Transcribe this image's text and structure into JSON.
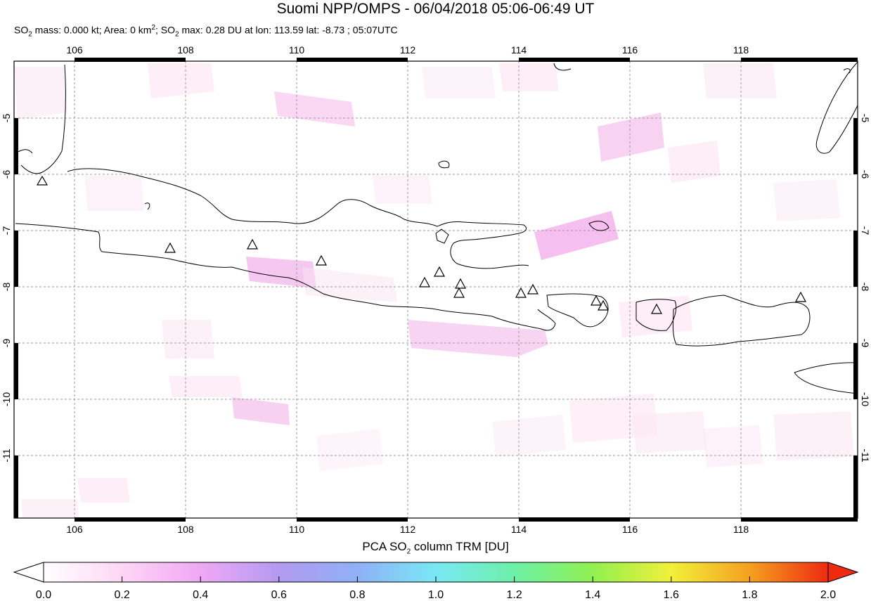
{
  "title": "Suomi NPP/OMPS - 06/04/2018 05:06-06:49 UT",
  "subtitle": {
    "p1": "SO",
    "p1sub": "2",
    "p2": " mass: 0.000 kt; Area: 0 km",
    "p2sup": "2",
    "p3": "; SO",
    "p3sub": "2",
    "p4": " max: 0.28 DU at lon: 113.59 lat: -8.73 ; 05:07UTC"
  },
  "map": {
    "lon_ticks": [
      "106",
      "108",
      "110",
      "112",
      "114",
      "116",
      "118"
    ],
    "lat_ticks": [
      "-5",
      "-6",
      "-7",
      "-8",
      "-9",
      "-10",
      "-11"
    ],
    "volcano_icon": "triangle-outline-icon"
  },
  "colorbar": {
    "title_a": "PCA SO",
    "title_sub": "2",
    "title_b": " column TRM [DU]",
    "ticks": [
      "0.0",
      "0.2",
      "0.4",
      "0.6",
      "0.8",
      "1.0",
      "1.2",
      "1.4",
      "1.6",
      "1.8",
      "2.0"
    ],
    "colors": [
      "#ffffff",
      "#ffd6f5",
      "#f0a8f5",
      "#b39af0",
      "#8fb0f7",
      "#79e8f5",
      "#6cf0a8",
      "#90f050",
      "#f2f03a",
      "#f5a020",
      "#ee2a10"
    ]
  }
}
